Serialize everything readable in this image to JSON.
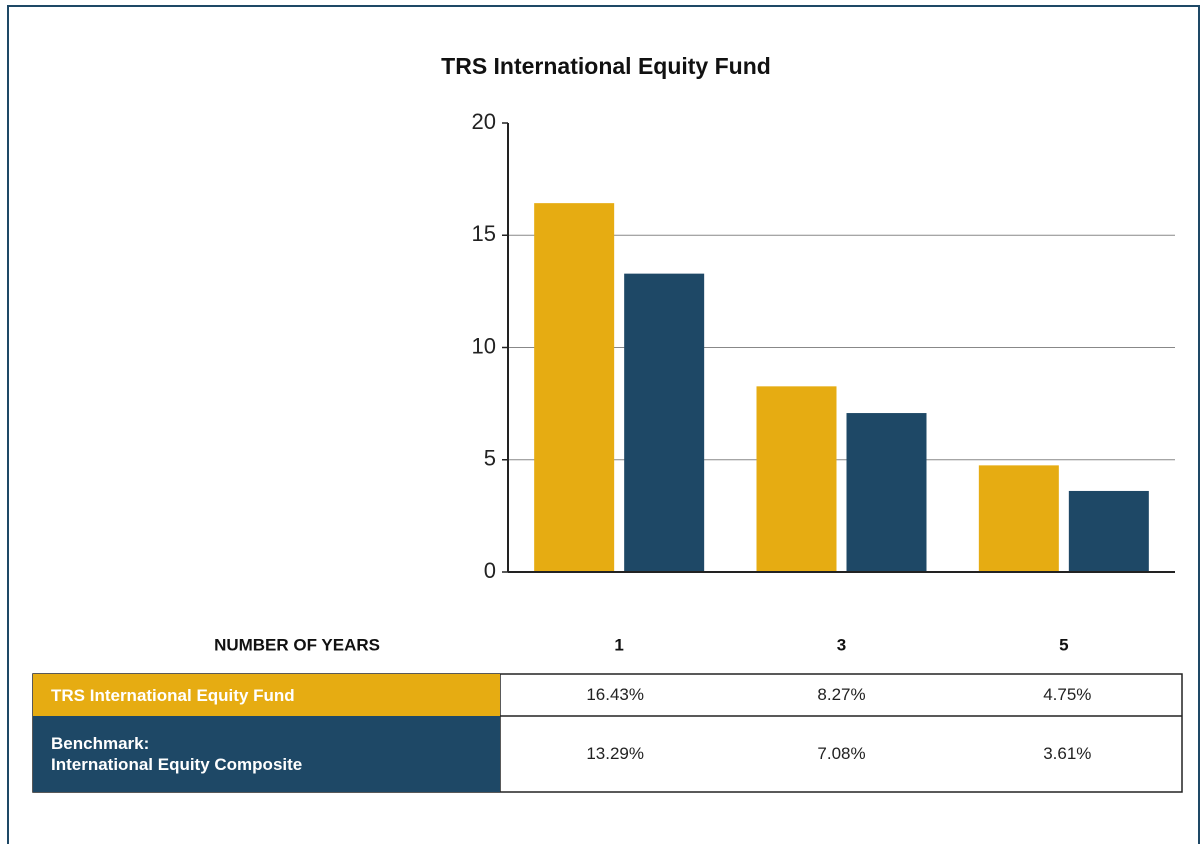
{
  "chart_data": {
    "type": "bar",
    "title": "TRS International Equity Fund",
    "xlabel": "NUMBER OF YEARS",
    "categories": [
      "1",
      "3",
      "5"
    ],
    "series": [
      {
        "name": "TRS International Equity Fund",
        "color": "#e6ac12",
        "values": [
          16.43,
          8.27,
          4.75
        ],
        "value_labels": [
          "16.43%",
          "8.27%",
          "4.75%"
        ]
      },
      {
        "name": "Benchmark:\nInternational Equity Composite",
        "color": "#1e4866",
        "values": [
          13.29,
          7.08,
          3.61
        ],
        "value_labels": [
          "13.29%",
          "7.08%",
          "3.61%"
        ]
      }
    ],
    "ylim": [
      0,
      20
    ],
    "yticks": [
      0,
      5,
      10,
      15,
      20
    ],
    "grid": true
  }
}
